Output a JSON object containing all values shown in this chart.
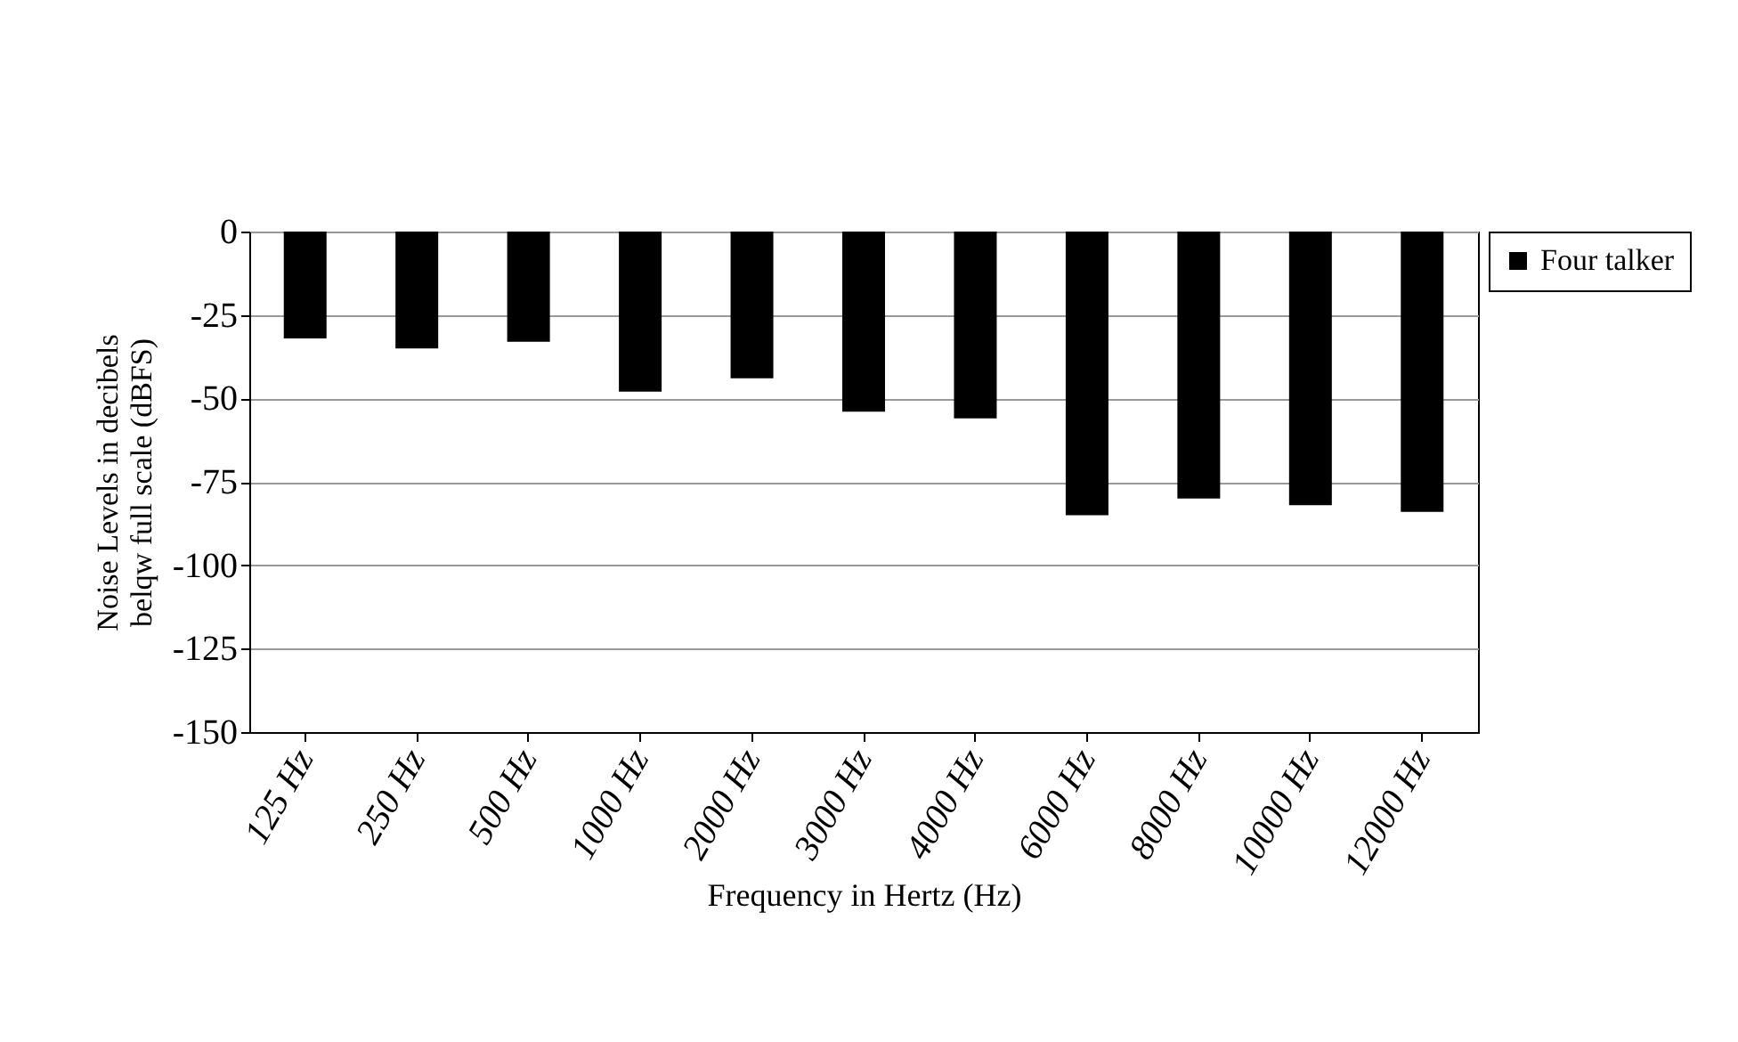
{
  "chart_data": {
    "type": "bar",
    "xlabel": "Frequency in Hertz (Hz)",
    "ylabel": "Noise Levels in decibels\nbelqw full scale (dBFS)",
    "categories": [
      "125 Hz",
      "250 Hz",
      "500 Hz",
      "1000 Hz",
      "2000 Hz",
      "3000 Hz",
      "4000 Hz",
      "6000 Hz",
      "8000 Hz",
      "10000 Hz",
      "12000 Hz"
    ],
    "series": [
      {
        "name": "Four talker",
        "color": "#000000",
        "values": [
          -32,
          -35,
          -33,
          -48,
          -44,
          -54,
          -56,
          -85,
          -80,
          -82,
          -84
        ]
      }
    ],
    "ylim": [
      -150,
      0
    ],
    "yticks": [
      0,
      -25,
      -50,
      -75,
      -100,
      -125,
      -150
    ],
    "grid": "y",
    "legend": "right"
  }
}
